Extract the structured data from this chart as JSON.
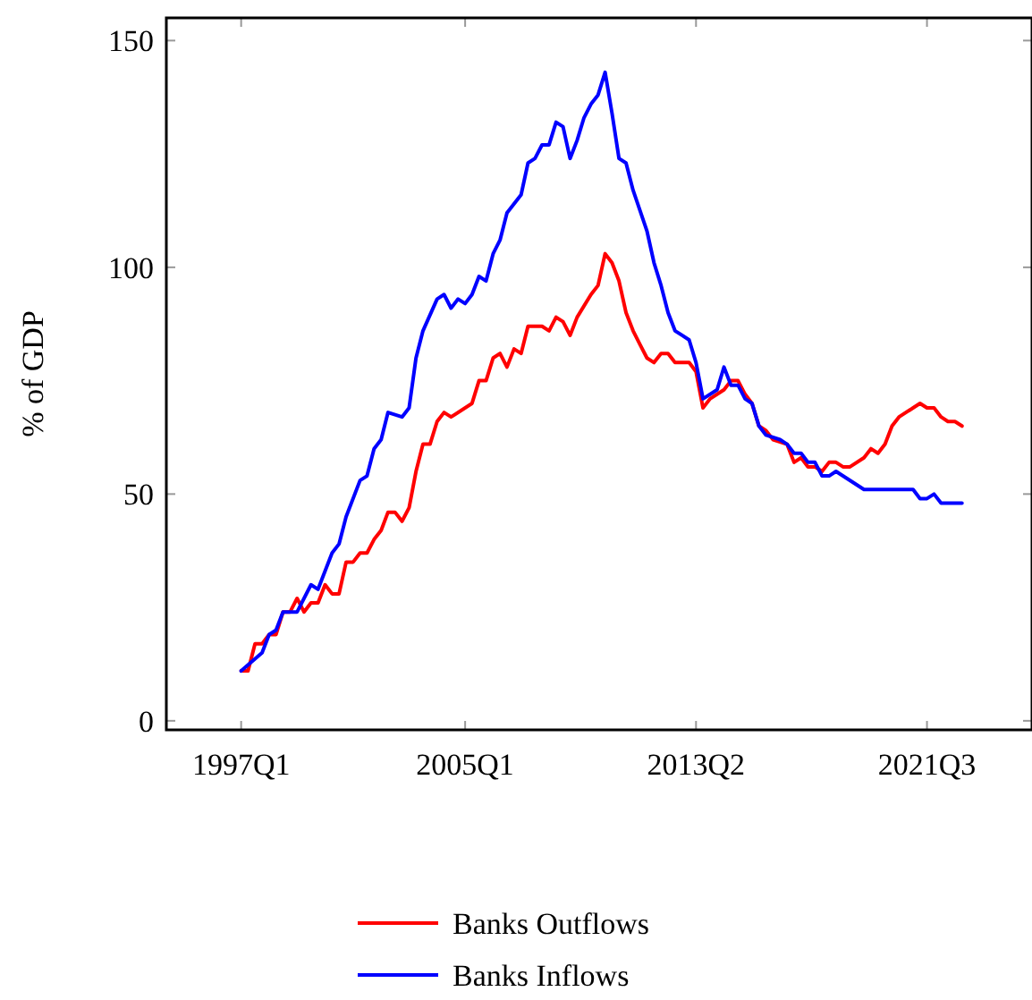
{
  "chart_data": {
    "type": "line",
    "ylabel": "% of GDP",
    "xlim": [
      "1994-05",
      "2025-04"
    ],
    "xticks": [
      {
        "value": "1997-01",
        "label": "1997Q1"
      },
      {
        "value": "2005-01",
        "label": "2005Q1"
      },
      {
        "value": "2013-04",
        "label": "2013Q2"
      },
      {
        "value": "2021-07",
        "label": "2021Q3"
      }
    ],
    "ylim": [
      -2,
      155
    ],
    "yticks": [
      0,
      50,
      100,
      150
    ],
    "grid": false,
    "legend": "bottom",
    "marker": "none",
    "line_style": "solid",
    "series": [
      {
        "name": "Banks Outflows",
        "color": "#ff0000",
        "x": [
          "1997-01",
          "1997-04",
          "1997-07",
          "1997-10",
          "1998-01",
          "1998-04",
          "1998-07",
          "1998-10",
          "1999-01",
          "1999-04",
          "1999-07",
          "1999-10",
          "2000-01",
          "2000-04",
          "2000-07",
          "2000-10",
          "2001-01",
          "2001-04",
          "2001-07",
          "2001-10",
          "2002-01",
          "2002-04",
          "2002-07",
          "2002-10",
          "2003-01",
          "2003-04",
          "2003-07",
          "2003-10",
          "2004-01",
          "2004-04",
          "2004-07",
          "2005-04",
          "2005-07",
          "2005-10",
          "2006-01",
          "2006-04",
          "2006-07",
          "2006-10",
          "2007-01",
          "2007-04",
          "2007-10",
          "2008-01",
          "2008-04",
          "2008-07",
          "2008-10",
          "2009-01",
          "2009-07",
          "2009-10",
          "2010-01",
          "2010-04",
          "2010-07",
          "2010-10",
          "2011-01",
          "2011-04",
          "2011-07",
          "2011-10",
          "2012-01",
          "2012-04",
          "2012-07",
          "2013-01",
          "2013-04",
          "2013-07",
          "2013-10",
          "2014-04",
          "2014-07",
          "2014-10",
          "2015-01",
          "2015-04",
          "2015-07",
          "2015-10",
          "2016-01",
          "2016-07",
          "2016-10",
          "2017-01",
          "2017-04",
          "2017-07",
          "2017-10",
          "2018-01",
          "2018-04",
          "2018-07",
          "2018-10",
          "2019-04",
          "2019-07",
          "2019-10",
          "2020-01",
          "2020-04",
          "2020-07",
          "2021-01",
          "2021-04",
          "2021-07",
          "2021-10",
          "2022-01",
          "2022-04",
          "2022-07",
          "2022-10"
        ],
        "values": [
          11,
          11,
          17,
          17,
          19,
          19,
          24,
          24,
          27,
          24,
          26,
          26,
          30,
          28,
          28,
          35,
          35,
          37,
          37,
          40,
          42,
          46,
          46,
          44,
          47,
          55,
          61,
          61,
          66,
          68,
          67,
          70,
          75,
          75,
          80,
          81,
          78,
          82,
          81,
          87,
          87,
          86,
          89,
          88,
          85,
          89,
          94,
          96,
          103,
          101,
          97,
          90,
          86,
          83,
          80,
          79,
          81,
          81,
          79,
          79,
          77,
          69,
          71,
          73,
          75,
          75,
          72,
          70,
          65,
          64,
          62,
          61,
          57,
          58,
          56,
          56,
          55,
          57,
          57,
          56,
          56,
          58,
          60,
          59,
          61,
          65,
          67,
          69,
          70,
          69,
          69,
          67,
          66,
          66,
          65
        ]
      },
      {
        "name": "Banks Inflows",
        "color": "#0000ff",
        "x": [
          "1997-01",
          "1997-10",
          "1998-01",
          "1998-04",
          "1998-07",
          "1999-01",
          "1999-07",
          "1999-10",
          "2000-04",
          "2000-07",
          "2000-10",
          "2001-04",
          "2001-07",
          "2001-10",
          "2002-01",
          "2002-04",
          "2002-10",
          "2003-01",
          "2003-04",
          "2003-07",
          "2004-01",
          "2004-04",
          "2004-07",
          "2004-10",
          "2005-01",
          "2005-04",
          "2005-07",
          "2005-10",
          "2006-01",
          "2006-04",
          "2006-07",
          "2007-01",
          "2007-04",
          "2007-07",
          "2007-10",
          "2008-01",
          "2008-04",
          "2008-07",
          "2008-10",
          "2009-01",
          "2009-04",
          "2009-07",
          "2009-10",
          "2010-01",
          "2010-04",
          "2010-07",
          "2010-10",
          "2011-01",
          "2011-07",
          "2011-10",
          "2012-01",
          "2012-04",
          "2012-07",
          "2013-01",
          "2013-04",
          "2013-07",
          "2014-01",
          "2014-04",
          "2014-07",
          "2014-10",
          "2015-01",
          "2015-04",
          "2015-07",
          "2015-10",
          "2016-04",
          "2016-07",
          "2016-10",
          "2017-01",
          "2017-04",
          "2017-07",
          "2017-10",
          "2018-01",
          "2018-04",
          "2019-04",
          "2021-01",
          "2021-04",
          "2021-07",
          "2021-10",
          "2022-01",
          "2022-10"
        ],
        "values": [
          11,
          15,
          19,
          20,
          24,
          24,
          30,
          29,
          37,
          39,
          45,
          53,
          54,
          60,
          62,
          68,
          67,
          69,
          80,
          86,
          93,
          94,
          91,
          93,
          92,
          94,
          98,
          97,
          103,
          106,
          112,
          116,
          123,
          124,
          127,
          127,
          132,
          131,
          124,
          128,
          133,
          136,
          138,
          143,
          134,
          124,
          123,
          117,
          108,
          101,
          96,
          90,
          86,
          84,
          79,
          71,
          73,
          78,
          74,
          74,
          71,
          70,
          65,
          63,
          62,
          61,
          59,
          59,
          57,
          57,
          54,
          54,
          55,
          51,
          51,
          49,
          49,
          50,
          48,
          48
        ]
      }
    ]
  }
}
